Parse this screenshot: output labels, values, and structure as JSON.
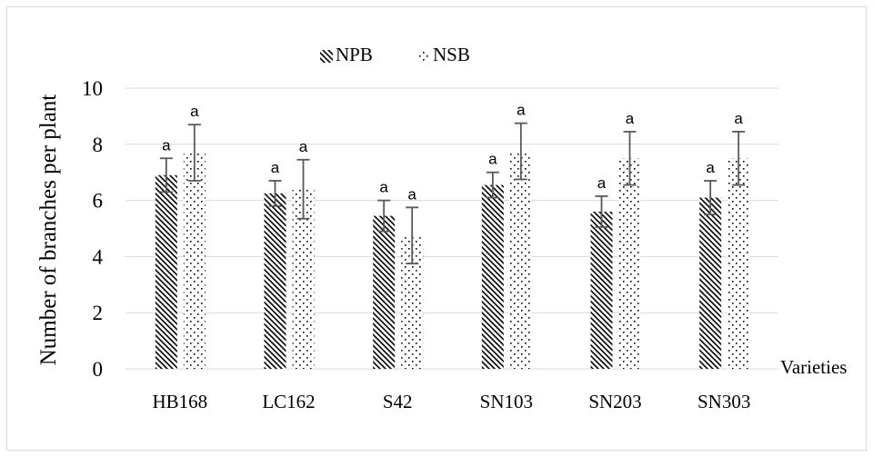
{
  "chart_data": {
    "type": "bar",
    "categories": [
      "HB168",
      "LC162",
      "S42",
      "SN103",
      "SN203",
      "SN303"
    ],
    "series": [
      {
        "name": "NPB",
        "values": [
          6.9,
          6.25,
          5.45,
          6.55,
          5.6,
          6.1
        ],
        "errors": [
          0.6,
          0.45,
          0.55,
          0.45,
          0.55,
          0.6
        ]
      },
      {
        "name": "NSB",
        "values": [
          7.7,
          6.4,
          4.75,
          7.75,
          7.5,
          7.5
        ],
        "errors": [
          1.0,
          1.05,
          1.0,
          1.0,
          0.95,
          0.95
        ]
      }
    ],
    "significance_labels": [
      [
        "a",
        "a",
        "a",
        "a",
        "a",
        "a"
      ],
      [
        "a",
        "a",
        "a",
        "a",
        "a",
        "a"
      ]
    ],
    "ylabel": "Number of branches per plant",
    "xlabel": "Varieties",
    "ylim": [
      0,
      10
    ],
    "yticks": [
      0,
      2,
      4,
      6,
      8,
      10
    ],
    "grid": true,
    "legend_position": "top-center",
    "colors": {
      "bar_pattern": "#000000",
      "grid": "#d9d9d9",
      "error_bar": "#595959",
      "text": "#000000"
    }
  }
}
